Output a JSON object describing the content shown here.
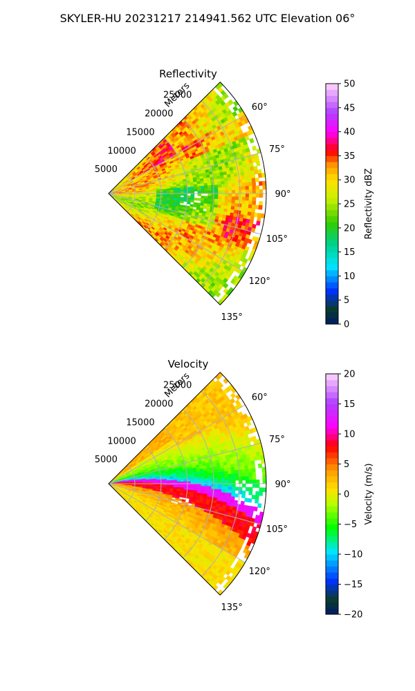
{
  "figure": {
    "suptitle": "SKYLER-HU  20231217  214941.562 UTC Elevation 06°"
  },
  "chart_data": [
    {
      "type": "heatmap",
      "projection": "polar-sector",
      "title": "Reflectivity",
      "radial_label": "Meters",
      "azimuth_range_deg": [
        45,
        135
      ],
      "azimuth_ticks": [
        "60°",
        "75°",
        "90°",
        "105°",
        "120°",
        "135°"
      ],
      "range_m": [
        0,
        30000
      ],
      "range_ticks": [
        "5000",
        "10000",
        "15000",
        "20000",
        "25000"
      ],
      "grid": true,
      "colorbar": {
        "label": "Reflectivity dBZ",
        "range": [
          0,
          50
        ],
        "ticks": [
          "0",
          "5",
          "10",
          "15",
          "20",
          "25",
          "30",
          "35",
          "40",
          "45",
          "50"
        ]
      },
      "colors": {
        "low": "#001a66",
        "dark_green": "#0b3a2a",
        "blue": "#0033ff",
        "cyan": "#00e5ff",
        "green": "#33cc00",
        "yellow": "#ffe000",
        "orange": "#ff9a00",
        "red": "#ff0000",
        "magenta": "#ff00ff",
        "violet": "#b040ff",
        "light_pink": "#ffd6ff"
      }
    },
    {
      "type": "heatmap",
      "projection": "polar-sector",
      "title": "Velocity",
      "radial_label": "Meters",
      "azimuth_range_deg": [
        45,
        135
      ],
      "azimuth_ticks": [
        "60°",
        "75°",
        "90°",
        "105°",
        "120°",
        "135°"
      ],
      "range_m": [
        0,
        30000
      ],
      "range_ticks": [
        "5000",
        "10000",
        "15000",
        "20000",
        "25000"
      ],
      "grid": true,
      "colorbar": {
        "label": "Velocity (m/s)",
        "range": [
          -20,
          20
        ],
        "ticks": [
          "−20",
          "−15",
          "−10",
          "−5",
          "0",
          "5",
          "10",
          "15",
          "20"
        ]
      },
      "colors": {
        "low": "#001a66",
        "dark_green": "#0b3a2a",
        "blue": "#0033ff",
        "cyan": "#00e5ff",
        "green": "#00ff00",
        "yellow": "#ffe000",
        "orange": "#ff9a00",
        "red": "#ff0000",
        "magenta": "#ff00ff",
        "violet": "#b040ff",
        "light_pink": "#ffd6ff"
      }
    }
  ]
}
